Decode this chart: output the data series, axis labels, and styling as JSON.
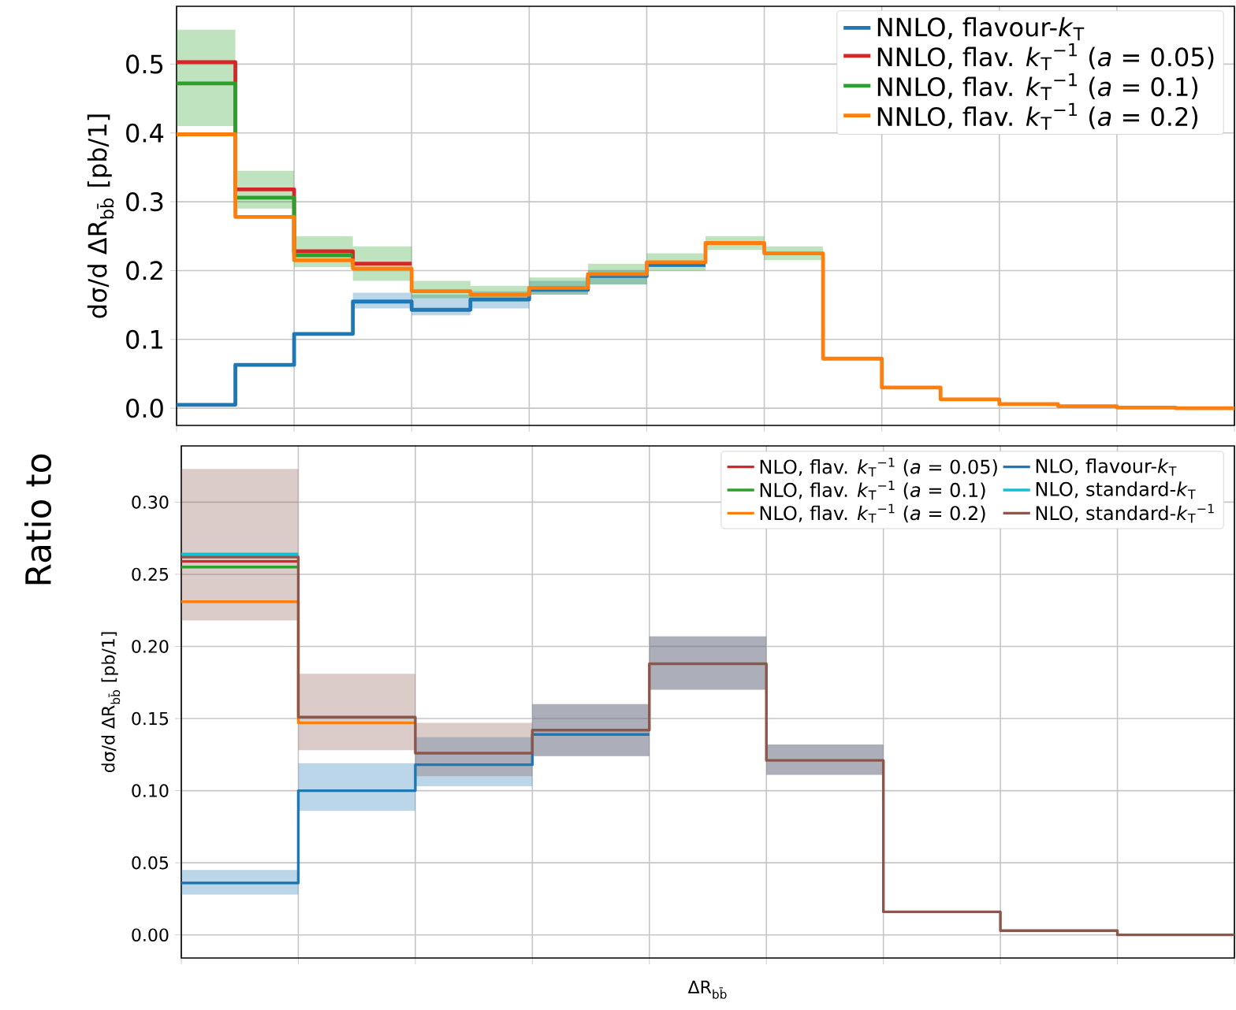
{
  "chart_data": [
    {
      "type": "step",
      "categories": [
        null,
        null,
        null,
        null,
        null,
        null,
        null,
        null,
        null,
        null,
        null,
        null,
        null,
        null,
        null,
        null,
        null,
        null,
        null
      ],
      "ylabel": "dσ/d ΔR$_{bb̄}$  [pb/1]",
      "ylim": [
        -0.025,
        0.584
      ],
      "yticks": [
        {
          "value": 0,
          "label": "0.0"
        },
        {
          "value": 0.1,
          "label": "0.1"
        },
        {
          "value": 0.2,
          "label": "0.2"
        },
        {
          "value": 0.3,
          "label": "0.3"
        },
        {
          "value": 0.4,
          "label": "0.4"
        },
        {
          "value": 0.5,
          "label": "0.5"
        }
      ],
      "grid": true,
      "legend": "top right",
      "tick_labels": "y",
      "series": [
        {
          "name": "NNLO, flavour-*k*$_{T}$",
          "color": "#1f77b4",
          "values": [
            0.005,
            0.063,
            0.108,
            0.155,
            0.143,
            0.158,
            0.172,
            0.192,
            0.208,
            0.208,
            null,
            null,
            null,
            null,
            null,
            null,
            null,
            null,
            null
          ],
          "lower": [
            null,
            null,
            null,
            0.145,
            0.135,
            0.145,
            0.165,
            0.18,
            0.18,
            null,
            null,
            null,
            null,
            null,
            null,
            null,
            null,
            null,
            null
          ],
          "upper": [
            null,
            null,
            null,
            0.168,
            0.165,
            0.17,
            0.185,
            0.2,
            0.2,
            null,
            null,
            null,
            null,
            null,
            null,
            null,
            null,
            null,
            null
          ]
        },
        {
          "name": "NNLO, flav. *k*$_{T}$$^{−1}$ (*a* = 0.05)",
          "color": "#d62728",
          "values": [
            0.503,
            0.318,
            0.228,
            0.21,
            0.21,
            null,
            null,
            null,
            null,
            null,
            null,
            null,
            null,
            null,
            null,
            null,
            null,
            null,
            null
          ]
        },
        {
          "name": "NNLO, flav. *k*$_{T}$$^{−1}$ (*a* = 0.1)",
          "color": "#2ca02c",
          "values": [
            0.472,
            0.306,
            0.222,
            0.222,
            null,
            null,
            null,
            null,
            null,
            null,
            null,
            null,
            null,
            null,
            null,
            null,
            null,
            null,
            null
          ],
          "lower": [
            0.41,
            0.29,
            0.205,
            0.185,
            0.16,
            0.155,
            0.165,
            0.18,
            0.2,
            0.23,
            0.215,
            0.215,
            null,
            null,
            null,
            null,
            null,
            null,
            null
          ],
          "upper": [
            0.55,
            0.345,
            0.25,
            0.235,
            0.185,
            0.178,
            0.19,
            0.21,
            0.225,
            0.25,
            0.235,
            0.235,
            null,
            null,
            null,
            null,
            null,
            null,
            null
          ]
        },
        {
          "name": "NNLO, flav. *k*$_{T}$$^{−1}$ (*a* = 0.2)",
          "color": "#ff7f0e",
          "values": [
            0.398,
            0.278,
            0.215,
            0.203,
            0.17,
            0.165,
            0.175,
            0.195,
            0.212,
            0.24,
            0.225,
            0.072,
            0.03,
            0.013,
            0.006,
            0.003,
            0.001,
            0.0,
            0.0
          ]
        }
      ]
    },
    {
      "type": "step",
      "categories": [
        null,
        null,
        null,
        null,
        null,
        null,
        null,
        null,
        null,
        null
      ],
      "ylabel": "dσ/d ΔR$_{bb̄}$  [pb/1]",
      "xlabel": "ΔR$_{bb̄}$",
      "ylim": [
        -0.016,
        0.339
      ],
      "yticks": [
        {
          "value": 0,
          "label": "0.00"
        },
        {
          "value": 0.05,
          "label": "0.05"
        },
        {
          "value": 0.1,
          "label": "0.10"
        },
        {
          "value": 0.15,
          "label": "0.15"
        },
        {
          "value": 0.2,
          "label": "0.20"
        },
        {
          "value": 0.25,
          "label": "0.25"
        },
        {
          "value": 0.3,
          "label": "0.30"
        }
      ],
      "grid": true,
      "legend": "top right",
      "tick_labels": "y",
      "annotations": [
        "Ratio to"
      ],
      "series": [
        {
          "name": "NLO, flav. *k*$_{T}$$^{−1}$ (*a* = 0.05)",
          "color": "#d62728",
          "values": [
            0.259,
            0.259,
            null,
            null,
            null,
            null,
            null,
            null,
            null,
            null
          ]
        },
        {
          "name": "NLO, flav. *k*$_{T}$$^{−1}$ (*a* = 0.1)",
          "color": "#2ca02c",
          "values": [
            0.255,
            0.255,
            null,
            null,
            null,
            null,
            null,
            null,
            null,
            null
          ]
        },
        {
          "name": "NLO, flav. *k*$_{T}$$^{−1}$ (*a* = 0.2)",
          "color": "#ff7f0e",
          "values": [
            0.231,
            0.147,
            0.147,
            null,
            null,
            null,
            null,
            null,
            null,
            null
          ]
        },
        {
          "name": "NLO, flavour-*k*$_{T}$",
          "color": "#1f77b4",
          "values": [
            0.036,
            0.1,
            0.118,
            0.139,
            0.139,
            null,
            null,
            null,
            null,
            null
          ],
          "lower": [
            0.028,
            0.086,
            0.103,
            0.124,
            0.17,
            0.111,
            0.111,
            null,
            null,
            null
          ],
          "upper": [
            0.045,
            0.119,
            0.137,
            0.16,
            0.207,
            0.132,
            0.132,
            null,
            null,
            null
          ]
        },
        {
          "name": "NLO, standard-*k*$_{T}$",
          "color": "#17becf",
          "values": [
            0.264,
            0.264,
            null,
            null,
            null,
            null,
            null,
            null,
            null,
            null
          ]
        },
        {
          "name": "NLO, standard-*k*$_{T}$$^{−1}$",
          "color": "#8c564b",
          "values": [
            0.262,
            0.151,
            0.126,
            0.142,
            0.188,
            0.121,
            0.016,
            0.003,
            0.0,
            0.0
          ],
          "lower": [
            0.218,
            0.128,
            0.11,
            0.124,
            0.17,
            0.111,
            0.111,
            null,
            null,
            null
          ],
          "upper": [
            0.323,
            0.181,
            0.147,
            0.16,
            0.207,
            0.132,
            0.132,
            null,
            null,
            null
          ]
        }
      ]
    }
  ]
}
